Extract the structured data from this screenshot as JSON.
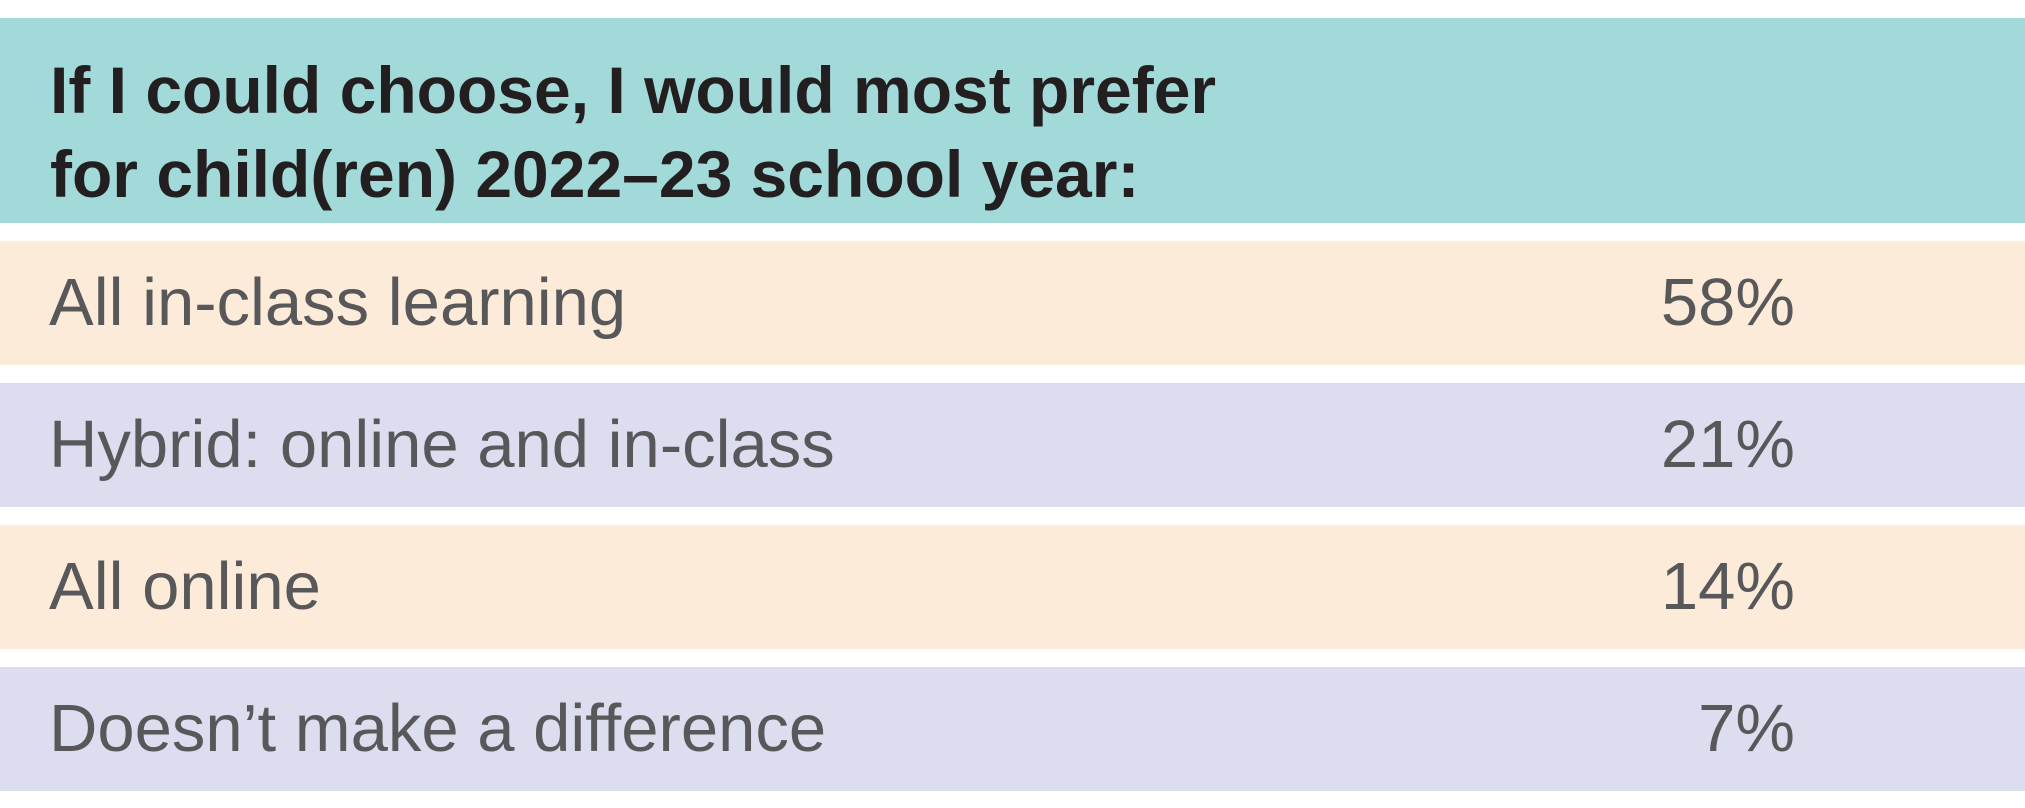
{
  "header": {
    "title_lines": [
      "If I could choose, I would most prefer",
      "for child(ren) 2022–23 school year:"
    ]
  },
  "table": {
    "rows": [
      [
        "All in-class learning",
        "58%"
      ],
      [
        "Hybrid: online and in-class",
        "21%"
      ],
      [
        "All online",
        "14%"
      ],
      [
        "Doesn’t make a difference",
        "7%"
      ]
    ]
  }
}
